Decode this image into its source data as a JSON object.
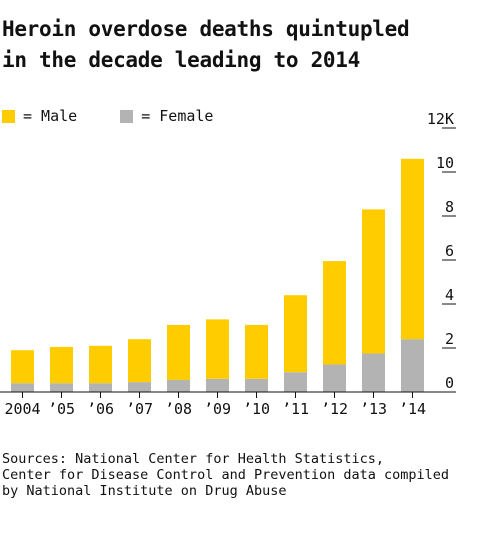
{
  "title_lines": [
    "Heroin overdose deaths quintupled",
    "in the decade leading to 2014"
  ],
  "legend": [
    {
      "label": "= Male",
      "color": "#ffcc00"
    },
    {
      "label": "= Female",
      "color": "#b3b3b3"
    }
  ],
  "sources_lines": [
    "Sources: National Center for Health Statistics,",
    "Center for Disease Control and Prevention data compiled",
    "by National Institute on Drug Abuse"
  ],
  "chart_data": {
    "type": "bar",
    "stacked": true,
    "categories": [
      "2004",
      "’05",
      "’06",
      "’07",
      "’08",
      "’09",
      "’10",
      "’11",
      "’12",
      "’13",
      "’14"
    ],
    "series": [
      {
        "name": "Female",
        "color": "#b3b3b3",
        "values": [
          0.4,
          0.4,
          0.4,
          0.45,
          0.55,
          0.6,
          0.6,
          0.9,
          1.25,
          1.75,
          2.4
        ]
      },
      {
        "name": "Male",
        "color": "#ffcc00",
        "values": [
          1.5,
          1.65,
          1.7,
          1.95,
          2.5,
          2.7,
          2.45,
          3.5,
          4.7,
          6.55,
          8.2
        ]
      }
    ],
    "y_ticks": [
      {
        "value": 0,
        "label": "0"
      },
      {
        "value": 2,
        "label": "2"
      },
      {
        "value": 4,
        "label": "4"
      },
      {
        "value": 6,
        "label": "6"
      },
      {
        "value": 8,
        "label": "8"
      },
      {
        "value": 10,
        "label": "10"
      },
      {
        "value": 12,
        "label": "12K"
      }
    ],
    "ylim": [
      0,
      12
    ],
    "grid": false,
    "legend_position": "top-left"
  }
}
